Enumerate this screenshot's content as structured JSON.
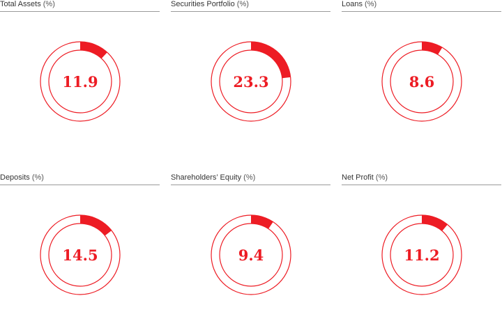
{
  "colors": {
    "accent": "#ed1c24",
    "rule": "#9a9a9a",
    "title": "#333333"
  },
  "chart_data": [
    {
      "type": "pie",
      "title": "Total Assets",
      "unit": "(%)",
      "value": 11.9,
      "label": "11.9"
    },
    {
      "type": "pie",
      "title": "Securities Portfolio",
      "unit": "(%)",
      "value": 23.3,
      "label": "23.3"
    },
    {
      "type": "pie",
      "title": "Loans",
      "unit": "(%)",
      "value": 8.6,
      "label": "8.6"
    },
    {
      "type": "pie",
      "title": "Deposits",
      "unit": "(%)",
      "value": 14.5,
      "label": "14.5"
    },
    {
      "type": "pie",
      "title": "Shareholders’ Equity",
      "unit": "(%)",
      "value": 9.4,
      "label": "9.4"
    },
    {
      "type": "pie",
      "title": "Net Profit",
      "unit": "(%)",
      "value": 11.2,
      "label": "11.2"
    }
  ]
}
